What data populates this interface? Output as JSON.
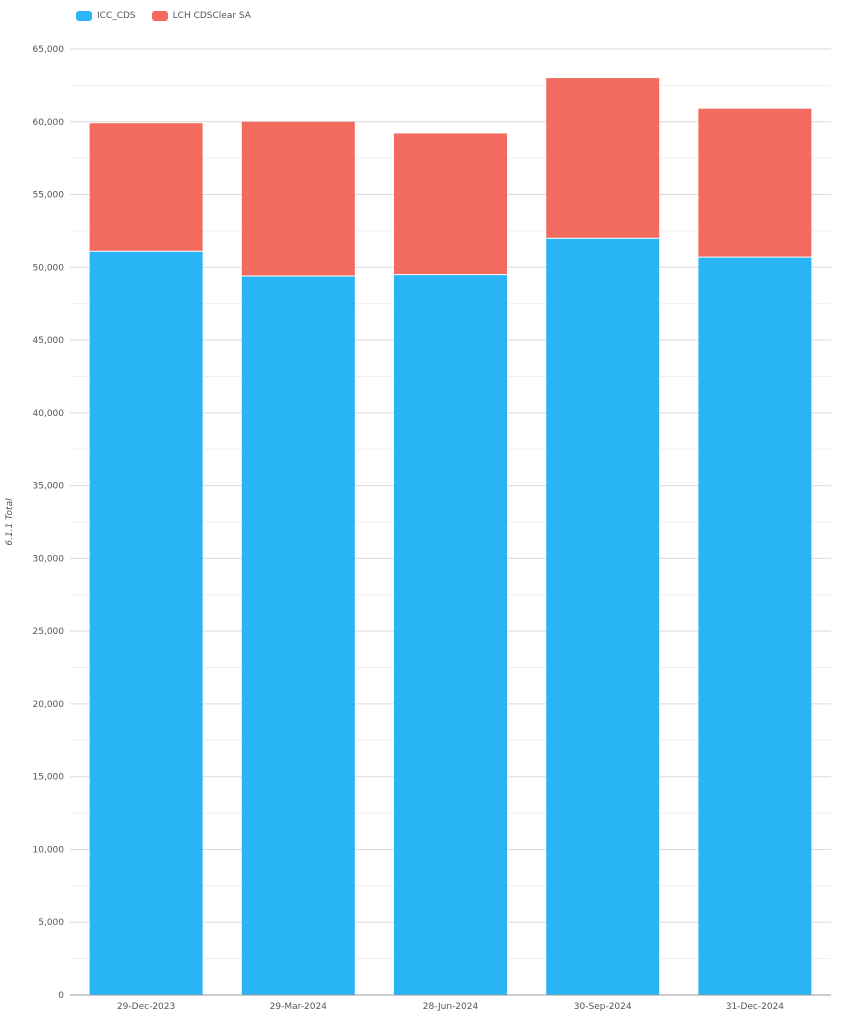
{
  "chart_data": {
    "type": "bar",
    "stacked": true,
    "categories": [
      "29-Dec-2023",
      "29-Mar-2024",
      "28-Jun-2024",
      "30-Sep-2024",
      "31-Dec-2024"
    ],
    "series": [
      {
        "name": "ICC_CDS",
        "color": "#29b4f6",
        "values": [
          51100,
          49400,
          49500,
          52000,
          50700
        ]
      },
      {
        "name": "LCH CDSClear SA",
        "color": "#f26b5e",
        "values": [
          8800,
          10600,
          9700,
          11000,
          10200
        ]
      }
    ],
    "ylabel": "6.1.1 Total",
    "xlabel": "",
    "ylim": [
      0,
      65000
    ],
    "yticks": [
      "0",
      "5,000",
      "10,000",
      "15,000",
      "20,000",
      "25,000",
      "30,000",
      "35,000",
      "40,000",
      "45,000",
      "50,000",
      "55,000",
      "60,000",
      "65,000"
    ],
    "grid": true,
    "legend_position": "top-left"
  }
}
